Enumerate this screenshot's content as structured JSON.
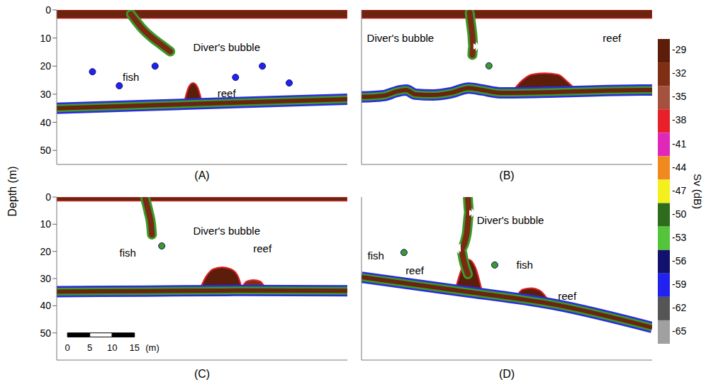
{
  "ylabel": "Depth (m)",
  "colorbar": {
    "label": "Sv (dB)",
    "range": [
      -66.5,
      -27.5
    ],
    "ticks": [
      -29,
      -32,
      -35,
      -38,
      -41,
      -44,
      -47,
      -50,
      -53,
      -56,
      -59,
      -62,
      -65
    ],
    "colors": [
      "#5c1e0a",
      "#7f2f14",
      "#a4523f",
      "#e8202a",
      "#e028b8",
      "#f08a1e",
      "#f3f01e",
      "#2e6b1c",
      "#54c43a",
      "#12126e",
      "#2222f0",
      "#555555",
      "#a0a0a0"
    ]
  },
  "chart_data": [
    {
      "title": "(A)",
      "type": "echogram",
      "xlim": [
        0,
        65
      ],
      "ylim": [
        0,
        55
      ],
      "yticks": [
        0,
        10,
        20,
        30,
        40,
        50
      ],
      "tick_labels": "y",
      "surface": {
        "depth": 3,
        "color": "#6b2410"
      },
      "seabed": {
        "color": "#6b2410",
        "x": [
          0,
          20,
          40,
          65
        ],
        "values": [
          35,
          34,
          33,
          31.8
        ]
      },
      "reefs": [
        {
          "color": "#5c1e0a",
          "x": [
            28.5,
            29.5,
            30.5,
            31.5,
            32.5
          ],
          "top": [
            33,
            27.5,
            26,
            27.5,
            33
          ],
          "base": [
            33.5,
            33.5,
            33.5,
            33.5,
            33.5
          ]
        }
      ],
      "bubble": {
        "color": "#7a2a12",
        "x": [
          16.6,
          19,
          21.4,
          23.5,
          25.4
        ],
        "values": [
          1.5,
          6.4,
          10,
          12.5,
          14.8
        ]
      },
      "fish": {
        "color": "#2222f0",
        "x": [
          8,
          14,
          22,
          40,
          46,
          52
        ],
        "values": [
          22,
          27,
          20,
          24,
          20,
          26
        ]
      },
      "annotations": [
        {
          "text": "Diver's bubble",
          "x": 38,
          "y": 13.2
        },
        {
          "text": "fish",
          "x": 16.6,
          "y": 24
        },
        {
          "text": "reef",
          "x": 38,
          "y": 29.7
        }
      ]
    },
    {
      "title": "(B)",
      "type": "echogram",
      "xlim": [
        0,
        65
      ],
      "ylim": [
        0,
        55
      ],
      "yticks": [
        0,
        10,
        20,
        30,
        40,
        50
      ],
      "tick_labels": false,
      "surface": {
        "depth": 3,
        "color": "#6b2410"
      },
      "seabed": {
        "color": "#6b2410",
        "x": [
          0,
          5,
          8,
          10,
          12,
          16,
          20,
          24,
          27,
          31,
          48,
          55,
          65
        ],
        "values": [
          31,
          30.5,
          29,
          28.5,
          30,
          30.3,
          29.5,
          27.8,
          28.5,
          29.5,
          29,
          28.7,
          28.5
        ]
      },
      "reefs": [
        {
          "color": "#5c1e0a",
          "x": [
            34,
            36,
            38,
            41,
            44,
            46,
            48
          ],
          "top": [
            28.5,
            25,
            23,
            22.5,
            23,
            25.5,
            28.5
          ],
          "base": [
            29,
            29,
            29,
            29,
            29,
            29,
            29
          ]
        }
      ],
      "bubble": {
        "color": "#7a2a12",
        "x": [
          24.2,
          24.5,
          24.8,
          25,
          24.8
        ],
        "values": [
          1,
          5,
          9,
          13,
          16
        ]
      },
      "fish": {
        "color": "#3a9a2a",
        "x": [
          28.5
        ],
        "values": [
          19.9
        ]
      },
      "annotations": [
        {
          "text": "Diver's bubble",
          "x": 8.7,
          "y": 10
        },
        {
          "text": "reef",
          "x": 56,
          "y": 10
        }
      ]
    },
    {
      "title": "(C)",
      "type": "echogram",
      "xlim": [
        0,
        65
      ],
      "ylim": [
        0,
        60
      ],
      "yticks": [
        0,
        10,
        20,
        30,
        40,
        50
      ],
      "tick_labels": "y",
      "surface": {
        "depth": 1.5,
        "color": "#6b2410"
      },
      "seabed": {
        "color": "#6b2410",
        "x": [
          0,
          20,
          40,
          65
        ],
        "values": [
          34.8,
          34.6,
          34.4,
          34.5
        ]
      },
      "reefs": [
        {
          "color": "#5c1e0a",
          "x": [
            32,
            33.5,
            35,
            37,
            39,
            40.5,
            41.5
          ],
          "top": [
            34,
            29,
            26.5,
            25.8,
            26.5,
            29,
            34
          ],
          "base": [
            34.5,
            34.5,
            34.5,
            34.5,
            34.5,
            34.5,
            34.5
          ]
        },
        {
          "color": "#7f2f14",
          "x": [
            41.5,
            42.5,
            44,
            45.5,
            46.5
          ],
          "top": [
            33,
            31,
            30.5,
            31,
            33
          ],
          "base": [
            33.5,
            33.5,
            33.5,
            33.5,
            33.5
          ]
        }
      ],
      "bubble": {
        "color": "#7a2a12",
        "x": [
          19.8,
          20.6,
          21.1,
          21.3
        ],
        "values": [
          0.5,
          5.8,
          10,
          13.8
        ]
      },
      "fish": {
        "color": "#3a9a2a",
        "x": [
          23.5
        ],
        "values": [
          18
        ]
      },
      "annotations": [
        {
          "text": "Diver's bubble",
          "x": 38,
          "y": 12.5
        },
        {
          "text": "fish",
          "x": 15.9,
          "y": 20.4
        },
        {
          "text": "reef",
          "x": 46,
          "y": 19
        }
      ],
      "scale_bar": {
        "ticks": [
          0,
          5,
          10,
          15
        ],
        "unit": "(m)"
      }
    },
    {
      "title": "(D)",
      "type": "echogram",
      "xlim": [
        0,
        65
      ],
      "ylim": [
        0,
        60
      ],
      "yticks": [
        0,
        10,
        20,
        30,
        40,
        50
      ],
      "tick_labels": false,
      "seabed": {
        "color": "#6b2410",
        "x": [
          0,
          22,
          43,
          65
        ],
        "values": [
          29.5,
          34.5,
          39.5,
          48
        ]
      },
      "reefs": [
        {
          "color": "#5c1e0a",
          "x": [
            21,
            22.5,
            24,
            25.5,
            27
          ],
          "top": [
            34,
            26,
            23,
            26,
            35
          ],
          "base": [
            34.5,
            34.5,
            34.8,
            35,
            35.2
          ]
        },
        {
          "color": "#5c1e0a",
          "x": [
            34.5,
            36,
            38,
            40,
            42
          ],
          "top": [
            37,
            34,
            33.5,
            34.5,
            38.5
          ],
          "base": [
            37.5,
            37.8,
            38.2,
            38.7,
            39.2
          ]
        }
      ],
      "bubble": {
        "color": "#7a2a12",
        "x": [
          23.8,
          24.1,
          23.5,
          22.2,
          23,
          23.8
        ],
        "values": [
          0.5,
          5.8,
          13.8,
          19.1,
          24.4,
          28.4
        ]
      },
      "fish": {
        "color": "#3a9a2a",
        "x": [
          9.5,
          29.8
        ],
        "values": [
          20.4,
          25
        ]
      },
      "annotations": [
        {
          "text": "fish",
          "x": 3.2,
          "y": 21.5
        },
        {
          "text": "reef",
          "x": 11.9,
          "y": 27
        },
        {
          "text": "Diver's bubble",
          "x": 33.3,
          "y": 8.5
        },
        {
          "text": "fish",
          "x": 36.5,
          "y": 25
        },
        {
          "text": "reef",
          "x": 46,
          "y": 36.5
        }
      ]
    }
  ]
}
